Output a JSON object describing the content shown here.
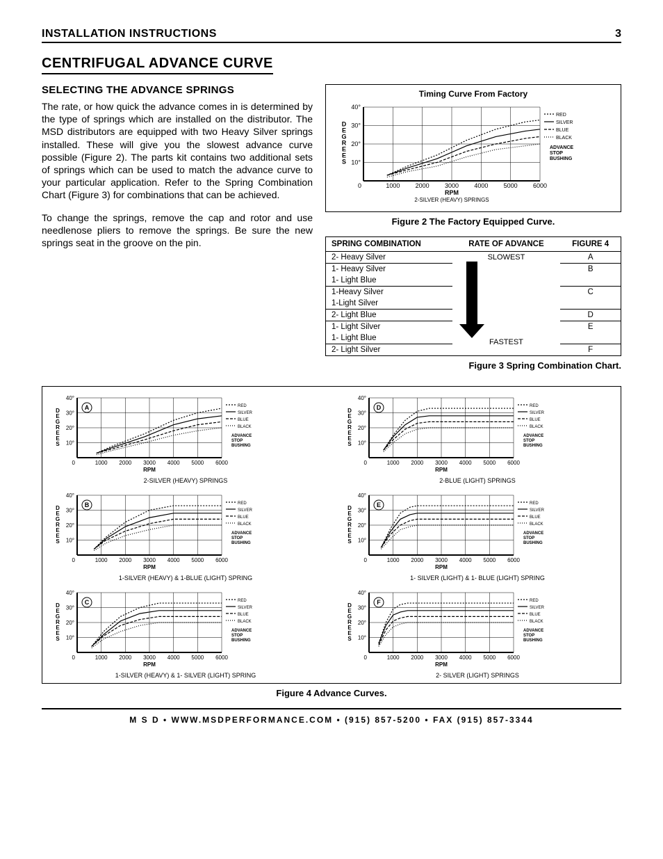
{
  "header": {
    "title": "INSTALLATION INSTRUCTIONS",
    "page": "3"
  },
  "section": {
    "title": "CENTRIFUGAL ADVANCE CURVE"
  },
  "subsection": {
    "title": "SELECTING THE ADVANCE SPRINGS"
  },
  "body": {
    "p1": "The rate, or how quick the advance comes in is determined by the type of springs which are installed on the distributor. The MSD distributors are equipped with two Heavy Silver springs installed.  These will give you the slowest advance curve possible (Figure 2).  The parts kit contains two additional sets of springs which can be used to match the advance curve to your particular application. Refer to the Spring Combination Chart (Figure 3) for combinations that can be achieved.",
    "p2": "To change the springs, remove the cap and rotor and use needlenose pliers to remove the springs. Be sure the new springs seat in the groove on the pin."
  },
  "fig2": {
    "title": "Timing Curve From Factory",
    "caption": "Figure 2 The Factory Equipped Curve.",
    "ylabel": "DEGREES",
    "xlabel": "RPM",
    "sub": "2-SILVER (HEAVY) SPRINGS",
    "ylim": [
      0,
      40
    ],
    "ytick_step": 10,
    "xlim": [
      0,
      6000
    ],
    "xtick_step": 1000,
    "legend_lines": [
      {
        "label": "RED",
        "color": "#000000",
        "dash": "2,2"
      },
      {
        "label": "SILVER",
        "color": "#000000",
        "dash": "none"
      },
      {
        "label": "BLUE",
        "color": "#000000",
        "dash": "4,2"
      },
      {
        "label": "BLACK",
        "color": "#000000",
        "dash": "1,2"
      }
    ],
    "legend_title": "ADVANCE STOP BUSHING",
    "curves": {
      "red": [
        [
          800,
          3
        ],
        [
          1500,
          8
        ],
        [
          2500,
          14
        ],
        [
          3500,
          22
        ],
        [
          4500,
          28
        ],
        [
          5500,
          32
        ],
        [
          6000,
          33
        ]
      ],
      "silver": [
        [
          800,
          3
        ],
        [
          1500,
          7
        ],
        [
          2500,
          12
        ],
        [
          3500,
          19
        ],
        [
          4500,
          24
        ],
        [
          5500,
          27
        ],
        [
          6000,
          28
        ]
      ],
      "blue": [
        [
          800,
          3
        ],
        [
          1500,
          6
        ],
        [
          2500,
          10
        ],
        [
          3500,
          16
        ],
        [
          4500,
          20
        ],
        [
          5500,
          23
        ],
        [
          6000,
          24
        ]
      ],
      "black": [
        [
          800,
          2
        ],
        [
          1500,
          5
        ],
        [
          2500,
          8
        ],
        [
          3500,
          13
        ],
        [
          4500,
          17
        ],
        [
          5500,
          19
        ],
        [
          6000,
          20
        ]
      ]
    }
  },
  "fig3": {
    "caption": "Figure 3  Spring Combination Chart.",
    "headers": [
      "SPRING COMBINATION",
      "RATE OF ADVANCE",
      "FIGURE 4"
    ],
    "rate_top": "SLOWEST",
    "rate_bottom": "FASTEST",
    "rows": [
      {
        "combo": [
          "2- Heavy Silver"
        ],
        "fig": "A",
        "border": true
      },
      {
        "combo": [
          "1- Heavy Silver",
          "1- Light Blue"
        ],
        "fig": "B",
        "border": true
      },
      {
        "combo": [
          "1-Heavy Silver",
          "1-Light Silver"
        ],
        "fig": "C",
        "border": true
      },
      {
        "combo": [
          "2- Light Blue"
        ],
        "fig": "D",
        "border": true
      },
      {
        "combo": [
          "1- Light Silver",
          "1- Light Blue"
        ],
        "fig": "E",
        "border": true
      },
      {
        "combo": [
          "2- Light Silver"
        ],
        "fig": "F",
        "border": true
      }
    ]
  },
  "fig4": {
    "caption": "Figure 4  Advance Curves.",
    "ylabel": "DEGREES",
    "xlabel": "RPM",
    "ylim": [
      0,
      40
    ],
    "ytick_step": 10,
    "xlim": [
      0,
      6000
    ],
    "xtick_step": 1000,
    "legend_lines": [
      {
        "label": "RED",
        "dash": "2,2"
      },
      {
        "label": "SILVER",
        "dash": "none"
      },
      {
        "label": "BLUE",
        "dash": "4,2"
      },
      {
        "label": "BLACK",
        "dash": "1,2"
      }
    ],
    "legend_title": "ADVANCE STOP BUSHING",
    "charts": [
      {
        "tag": "A",
        "sub": "2-SILVER (HEAVY) SPRINGS",
        "curves": {
          "red": [
            [
              800,
              3
            ],
            [
              1500,
              8
            ],
            [
              2800,
              16
            ],
            [
              4000,
              25
            ],
            [
              5000,
              30
            ],
            [
              6000,
              33
            ]
          ],
          "silver": [
            [
              800,
              3
            ],
            [
              1500,
              7
            ],
            [
              2800,
              14
            ],
            [
              4000,
              22
            ],
            [
              5000,
              26
            ],
            [
              6000,
              28
            ]
          ],
          "blue": [
            [
              800,
              3
            ],
            [
              1500,
              6
            ],
            [
              2800,
              12
            ],
            [
              4000,
              18
            ],
            [
              5000,
              22
            ],
            [
              6000,
              24
            ]
          ],
          "black": [
            [
              800,
              2
            ],
            [
              1500,
              5
            ],
            [
              2800,
              10
            ],
            [
              4000,
              15
            ],
            [
              5000,
              18
            ],
            [
              6000,
              20
            ]
          ]
        }
      },
      {
        "tag": "D",
        "sub": "2-BLUE (LIGHT) SPRINGS",
        "curves": {
          "red": [
            [
              600,
              5
            ],
            [
              1000,
              15
            ],
            [
              1500,
              25
            ],
            [
              2000,
              31
            ],
            [
              2500,
              33
            ],
            [
              6000,
              33
            ]
          ],
          "silver": [
            [
              600,
              5
            ],
            [
              1000,
              14
            ],
            [
              1500,
              22
            ],
            [
              2000,
              27
            ],
            [
              2500,
              28
            ],
            [
              6000,
              28
            ]
          ],
          "blue": [
            [
              600,
              5
            ],
            [
              1000,
              12
            ],
            [
              1500,
              19
            ],
            [
              2000,
              23
            ],
            [
              2500,
              24
            ],
            [
              6000,
              24
            ]
          ],
          "black": [
            [
              600,
              4
            ],
            [
              1000,
              10
            ],
            [
              1500,
              16
            ],
            [
              2000,
              19
            ],
            [
              2500,
              20
            ],
            [
              6000,
              20
            ]
          ]
        }
      },
      {
        "tag": "B",
        "sub": "1-SILVER (HEAVY) & 1-BLUE (LIGHT) SPRING",
        "curves": {
          "red": [
            [
              700,
              4
            ],
            [
              1200,
              12
            ],
            [
              2000,
              22
            ],
            [
              3000,
              30
            ],
            [
              4000,
              33
            ],
            [
              6000,
              33
            ]
          ],
          "silver": [
            [
              700,
              4
            ],
            [
              1200,
              11
            ],
            [
              2000,
              19
            ],
            [
              3000,
              25
            ],
            [
              4000,
              28
            ],
            [
              6000,
              28
            ]
          ],
          "blue": [
            [
              700,
              4
            ],
            [
              1200,
              10
            ],
            [
              2000,
              16
            ],
            [
              3000,
              21
            ],
            [
              4000,
              24
            ],
            [
              6000,
              24
            ]
          ],
          "black": [
            [
              700,
              3
            ],
            [
              1200,
              8
            ],
            [
              2000,
              13
            ],
            [
              3000,
              17
            ],
            [
              4000,
              20
            ],
            [
              6000,
              20
            ]
          ]
        }
      },
      {
        "tag": "E",
        "sub": "1- SILVER (LIGHT) & 1- BLUE (LIGHT) SPRING",
        "curves": {
          "red": [
            [
              500,
              5
            ],
            [
              900,
              18
            ],
            [
              1300,
              28
            ],
            [
              1700,
              32
            ],
            [
              2000,
              33
            ],
            [
              6000,
              33
            ]
          ],
          "silver": [
            [
              500,
              5
            ],
            [
              900,
              16
            ],
            [
              1300,
              24
            ],
            [
              1700,
              27
            ],
            [
              2000,
              28
            ],
            [
              6000,
              28
            ]
          ],
          "blue": [
            [
              500,
              5
            ],
            [
              900,
              14
            ],
            [
              1300,
              20
            ],
            [
              1700,
              23
            ],
            [
              2000,
              24
            ],
            [
              6000,
              24
            ]
          ],
          "black": [
            [
              500,
              4
            ],
            [
              900,
              11
            ],
            [
              1300,
              17
            ],
            [
              1700,
              19
            ],
            [
              2000,
              20
            ],
            [
              6000,
              20
            ]
          ]
        }
      },
      {
        "tag": "C",
        "sub": "1-SILVER (HEAVY) & 1- SILVER (LIGHT) SPRING",
        "curves": {
          "red": [
            [
              600,
              4
            ],
            [
              1100,
              14
            ],
            [
              1800,
              24
            ],
            [
              2600,
              30
            ],
            [
              3400,
              33
            ],
            [
              6000,
              33
            ]
          ],
          "silver": [
            [
              600,
              4
            ],
            [
              1100,
              12
            ],
            [
              1800,
              21
            ],
            [
              2600,
              26
            ],
            [
              3400,
              28
            ],
            [
              6000,
              28
            ]
          ],
          "blue": [
            [
              600,
              4
            ],
            [
              1100,
              11
            ],
            [
              1800,
              18
            ],
            [
              2600,
              22
            ],
            [
              3400,
              24
            ],
            [
              6000,
              24
            ]
          ],
          "black": [
            [
              600,
              3
            ],
            [
              1100,
              9
            ],
            [
              1800,
              14
            ],
            [
              2600,
              18
            ],
            [
              3400,
              20
            ],
            [
              6000,
              20
            ]
          ]
        }
      },
      {
        "tag": "F",
        "sub": "2- SILVER (LIGHT) SPRINGS",
        "curves": {
          "red": [
            [
              400,
              6
            ],
            [
              700,
              20
            ],
            [
              1000,
              29
            ],
            [
              1300,
              32
            ],
            [
              1600,
              33
            ],
            [
              6000,
              33
            ]
          ],
          "silver": [
            [
              400,
              6
            ],
            [
              700,
              18
            ],
            [
              1000,
              25
            ],
            [
              1300,
              27
            ],
            [
              1600,
              28
            ],
            [
              6000,
              28
            ]
          ],
          "blue": [
            [
              400,
              5
            ],
            [
              700,
              15
            ],
            [
              1000,
              21
            ],
            [
              1300,
              23
            ],
            [
              1600,
              24
            ],
            [
              6000,
              24
            ]
          ],
          "black": [
            [
              400,
              4
            ],
            [
              700,
              12
            ],
            [
              1000,
              17
            ],
            [
              1300,
              19
            ],
            [
              1600,
              20
            ],
            [
              6000,
              20
            ]
          ]
        }
      }
    ]
  },
  "footer": {
    "text": "M S D  •  WWW.MSDPERFORMANCE.COM  •  (915) 857-5200  •  FAX (915) 857-3344"
  },
  "style": {
    "grid_color": "#000000",
    "line_color": "#000000",
    "bg": "#ffffff"
  }
}
